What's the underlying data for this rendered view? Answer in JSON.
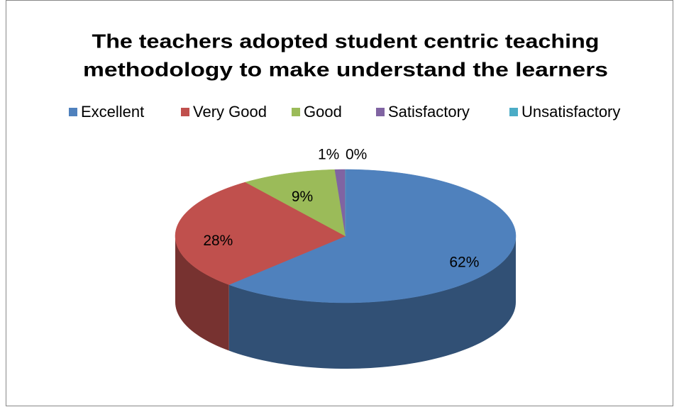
{
  "chart_data": {
    "type": "pie",
    "title": [
      "The teachers adopted student centric teaching",
      "methodology to make understand the learners"
    ],
    "categories": [
      "Excellent",
      "Very Good",
      "Good",
      "Satisfactory",
      "Unsatisfactory"
    ],
    "values": [
      62,
      28,
      9,
      1,
      0
    ],
    "value_labels": [
      "62%",
      "28%",
      "9%",
      "1%",
      "0%"
    ],
    "colors": [
      "#4f81bd",
      "#c0504d",
      "#9bbb59",
      "#8064a2",
      "#4bacc6"
    ],
    "legend": "top"
  }
}
